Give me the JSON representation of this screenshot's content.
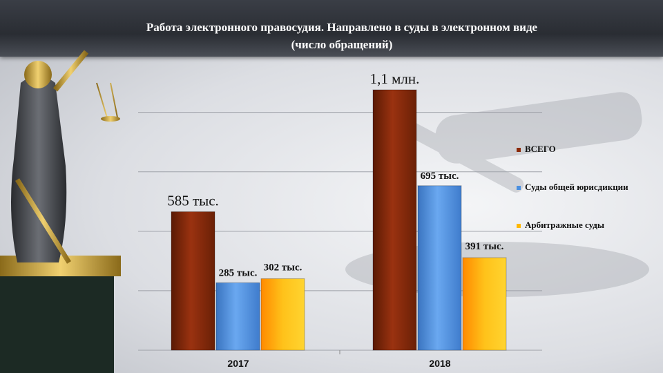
{
  "title": {
    "line1": "Работа электронного правосудия. Направлено в суды в электронном виде",
    "line2": "(число обращений)"
  },
  "colors": {
    "total": "#8b2a08",
    "general": "#4a8fe0",
    "arbitrage": "#ffb800"
  },
  "chart_data": {
    "type": "bar",
    "categories": [
      "2017",
      "2018"
    ],
    "series": [
      {
        "name": "ВСЕГО",
        "values": [
          585000,
          1100000
        ],
        "labels": [
          "585 тыс.",
          "1,1 млн."
        ]
      },
      {
        "name": "Суды общей юрисдикции",
        "values": [
          285000,
          695000
        ],
        "labels": [
          "285 тыс.",
          "695  тыс."
        ]
      },
      {
        "name": "Арбитражные суды",
        "values": [
          302000,
          391000
        ],
        "labels": [
          "302  тыс.",
          "391  тыс."
        ]
      }
    ],
    "title": "Работа электронного правосудия. Направлено в суды в электронном виде (число обращений)",
    "legend_position": "right",
    "grid": true
  }
}
